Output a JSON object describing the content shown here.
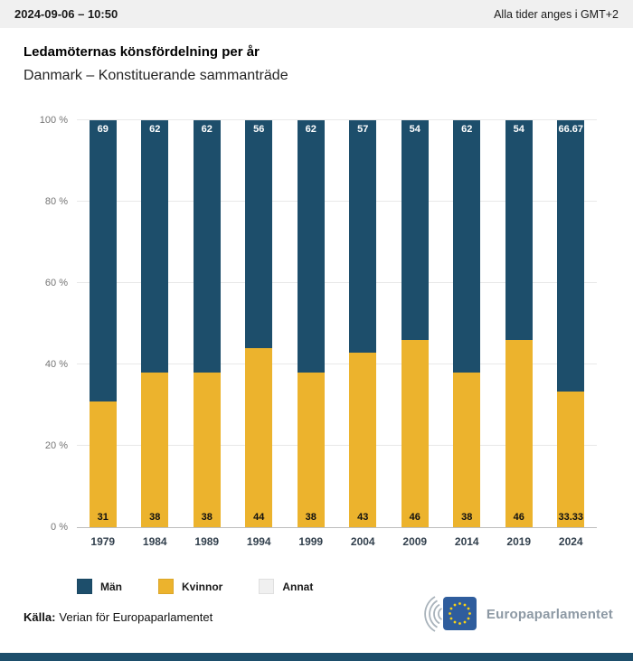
{
  "header": {
    "timestamp": "2024-09-06 – 10:50",
    "timezone_note": "Alla tider anges i GMT+2"
  },
  "title": "Ledamöternas könsfördelning per år",
  "subtitle": "Danmark – Konstituerande sammanträde",
  "chart_data": {
    "type": "bar",
    "stacked": true,
    "percent_stacked": true,
    "title": "Ledamöternas könsfördelning per år",
    "subtitle": "Danmark – Konstituerande sammanträde",
    "categories": [
      "1979",
      "1984",
      "1989",
      "1994",
      "1999",
      "2004",
      "2009",
      "2014",
      "2019",
      "2024"
    ],
    "series": [
      {
        "name": "Män",
        "color": "#1d4e6b",
        "values": [
          69,
          62,
          62,
          56,
          62,
          57,
          54,
          62,
          54,
          66.67
        ]
      },
      {
        "name": "Kvinnor",
        "color": "#ecb32d",
        "values": [
          31,
          38,
          38,
          44,
          38,
          43,
          46,
          38,
          46,
          33.33
        ]
      },
      {
        "name": "Annat",
        "color": "#f0f0f0",
        "values": [
          0,
          0,
          0,
          0,
          0,
          0,
          0,
          0,
          0,
          0
        ]
      }
    ],
    "xlabel": "",
    "ylabel": "",
    "ylim": [
      0,
      100
    ],
    "yticks": [
      "0 %",
      "20 %",
      "40 %",
      "60 %",
      "80 %",
      "100 %"
    ],
    "grid": true,
    "legend_position": "bottom"
  },
  "legend": {
    "items": [
      {
        "label": "Män",
        "color": "#1d4e6b"
      },
      {
        "label": "Kvinnor",
        "color": "#ecb32d"
      },
      {
        "label": "Annat",
        "color": "#f0f0f0"
      }
    ]
  },
  "source": {
    "label": "Källa:",
    "text": "Verian för Europaparlamentet"
  },
  "logo": {
    "text": "Europaparlamentet"
  },
  "colors": {
    "men": "#1d4e6b",
    "women": "#ecb32d",
    "annat": "#f0f0f0",
    "footer": "#1d4e6b",
    "topbar_bg": "#f0f0f0",
    "eu_flag_blue": "#2f5d9d",
    "eu_star_yellow": "#f7d117"
  }
}
